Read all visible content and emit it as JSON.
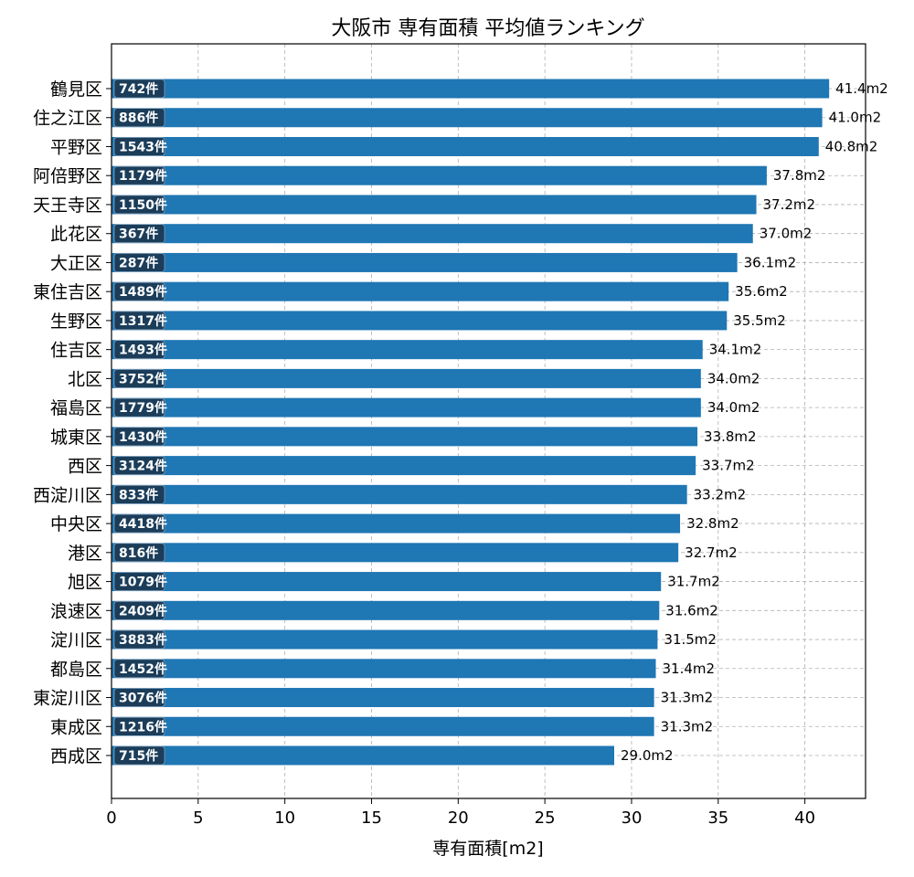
{
  "chart_data": {
    "type": "bar",
    "orientation": "horizontal",
    "title": "大阪市 専有面積 平均値ランキング",
    "xlabel": "専有面積[m2]",
    "ylabel": "",
    "xlim": [
      0,
      43.5
    ],
    "xticks": [
      0,
      5,
      10,
      15,
      20,
      25,
      30,
      35,
      40
    ],
    "grid": true,
    "bar_color": "#1f77b4",
    "count_badge_color": "#1b3d5a",
    "value_suffix": "m2",
    "count_suffix": "件",
    "categories": [
      "鶴見区",
      "住之江区",
      "平野区",
      "阿倍野区",
      "天王寺区",
      "此花区",
      "大正区",
      "東住吉区",
      "生野区",
      "住吉区",
      "北区",
      "福島区",
      "城東区",
      "西区",
      "西淀川区",
      "中央区",
      "港区",
      "旭区",
      "浪速区",
      "淀川区",
      "都島区",
      "東淀川区",
      "東成区",
      "西成区"
    ],
    "values": [
      41.4,
      41.0,
      40.8,
      37.8,
      37.2,
      37.0,
      36.1,
      35.6,
      35.5,
      34.1,
      34.0,
      34.0,
      33.8,
      33.7,
      33.2,
      32.8,
      32.7,
      31.7,
      31.6,
      31.5,
      31.4,
      31.3,
      31.3,
      29.0
    ],
    "value_labels": [
      "41.4m2",
      "41.0m2",
      "40.8m2",
      "37.8m2",
      "37.2m2",
      "37.0m2",
      "36.1m2",
      "35.6m2",
      "35.5m2",
      "34.1m2",
      "34.0m2",
      "34.0m2",
      "33.8m2",
      "33.7m2",
      "33.2m2",
      "32.8m2",
      "32.7m2",
      "31.7m2",
      "31.6m2",
      "31.5m2",
      "31.4m2",
      "31.3m2",
      "31.3m2",
      "29.0m2"
    ],
    "counts": [
      742,
      886,
      1543,
      1179,
      1150,
      367,
      287,
      1489,
      1317,
      1493,
      3752,
      1779,
      1430,
      3124,
      833,
      4418,
      816,
      1079,
      2409,
      3883,
      1452,
      3076,
      1216,
      715
    ],
    "count_labels": [
      "742件",
      "886件",
      "1543件",
      "1179件",
      "1150件",
      "367件",
      "287件",
      "1489件",
      "1317件",
      "1493件",
      "3752件",
      "1779件",
      "1430件",
      "3124件",
      "833件",
      "4418件",
      "816件",
      "1079件",
      "2409件",
      "3883件",
      "1452件",
      "3076件",
      "1216件",
      "715件"
    ]
  }
}
